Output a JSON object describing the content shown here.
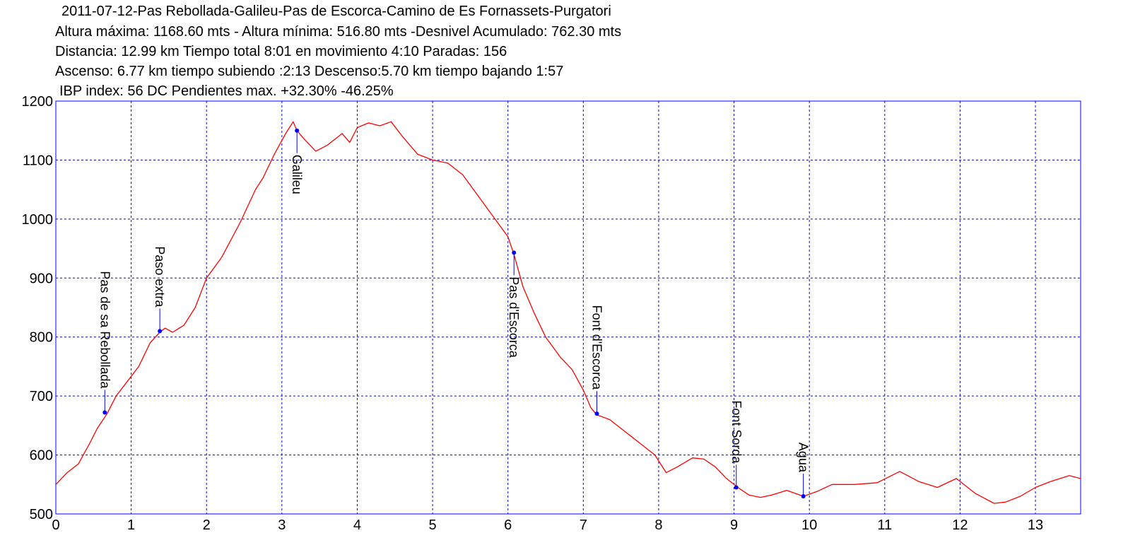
{
  "header": {
    "title": "2011-07-12-Pas Rebollada-Galileu-Pas de Escorca-Camino de Es Fornassets-Purgatori",
    "line2": "Altura máxima: 1168.60 mts - Altura mínima: 516.80 mts -Desnivel Acumulado: 762.30 mts",
    "line3": "Distancia: 12.99 km  Tiempo total 8:01  en movimiento 4:10 Paradas: 156",
    "line4": "Ascenso: 6.77 km  tiempo subiendo :2:13  Descenso:5.70 km tiempo bajando 1:57",
    "line5": "IBP index: 56 DC  Pendientes max. +32.30%  -46.25%"
  },
  "colors": {
    "profile": "#ff0000",
    "frame": "#0000ff",
    "grid": "#0000ff",
    "marker": "#0000ff",
    "text": "#000000"
  },
  "chart_data": {
    "type": "line",
    "xlim": [
      0,
      13.6
    ],
    "ylim": [
      500,
      1200
    ],
    "x_ticks": [
      0,
      1,
      2,
      3,
      4,
      5,
      6,
      7,
      8,
      9,
      10,
      11,
      12,
      13
    ],
    "y_ticks": [
      500,
      600,
      700,
      800,
      900,
      1000,
      1100,
      1200
    ],
    "grid": true,
    "series": [
      {
        "x": [
          0,
          0.15,
          0.3,
          0.45,
          0.55,
          0.68,
          0.8,
          0.95,
          1.1,
          1.25,
          1.38,
          1.45,
          1.55,
          1.7,
          1.85,
          2.0,
          2.2,
          2.45,
          2.65,
          2.75,
          2.9,
          3.05,
          3.15,
          3.2,
          3.3,
          3.45,
          3.6,
          3.8,
          3.9,
          4.0,
          4.15,
          4.3,
          4.45,
          4.6,
          4.8,
          5.0,
          5.2,
          5.4,
          5.6,
          5.8,
          6.0,
          6.08,
          6.2,
          6.35,
          6.5,
          6.7,
          6.85,
          7.0,
          7.1,
          7.18,
          7.35,
          7.55,
          7.75,
          7.95,
          8.1,
          8.25,
          8.45,
          8.6,
          8.75,
          8.9,
          9.05,
          9.2,
          9.35,
          9.5,
          9.7,
          9.92,
          10.1,
          10.3,
          10.6,
          10.9,
          11.2,
          11.45,
          11.7,
          11.95,
          12.2,
          12.45,
          12.6,
          12.8,
          13.0,
          13.2,
          13.45,
          13.6
        ],
        "y": [
          550,
          570,
          585,
          620,
          645,
          670,
          700,
          725,
          750,
          790,
          808,
          815,
          808,
          820,
          850,
          900,
          935,
          995,
          1050,
          1070,
          1110,
          1145,
          1165,
          1150,
          1135,
          1115,
          1125,
          1145,
          1130,
          1155,
          1163,
          1158,
          1165,
          1140,
          1110,
          1100,
          1095,
          1075,
          1040,
          1005,
          970,
          940,
          885,
          840,
          800,
          765,
          745,
          710,
          680,
          668,
          660,
          640,
          620,
          600,
          570,
          580,
          595,
          593,
          580,
          560,
          545,
          532,
          528,
          532,
          540,
          530,
          538,
          550,
          550,
          553,
          572,
          555,
          545,
          560,
          535,
          518,
          520,
          530,
          545,
          555,
          565,
          560
        ]
      }
    ],
    "annotations": [
      {
        "label": "Pas de sa Rebollada",
        "x": 0.65,
        "y": 672
      },
      {
        "label": "Paso extra",
        "x": 1.38,
        "y": 810
      },
      {
        "label": "Galileu",
        "x": 3.2,
        "y": 1150
      },
      {
        "label": "Pas  d'Escorca",
        "x": 6.08,
        "y": 943
      },
      {
        "label": "Font d'Escorca",
        "x": 7.18,
        "y": 670
      },
      {
        "label": "Font Sorda",
        "x": 9.03,
        "y": 545
      },
      {
        "label": "Agua",
        "x": 9.92,
        "y": 530
      }
    ]
  }
}
